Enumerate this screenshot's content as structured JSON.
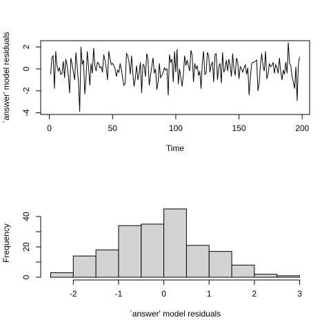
{
  "chart_data": [
    {
      "type": "line",
      "xlabel": "Time",
      "ylabel": "`answer' model residuals",
      "color": "#000000",
      "x": [
        1,
        2,
        3,
        4,
        5,
        6,
        7,
        8,
        9,
        10,
        11,
        12,
        13,
        14,
        15,
        16,
        17,
        18,
        19,
        20,
        21,
        22,
        23,
        24,
        25,
        26,
        27,
        28,
        29,
        30,
        31,
        32,
        33,
        34,
        35,
        36,
        37,
        38,
        39,
        40,
        41,
        42,
        43,
        44,
        45,
        46,
        47,
        48,
        49,
        50,
        51,
        52,
        53,
        54,
        55,
        56,
        57,
        58,
        59,
        60,
        61,
        62,
        63,
        64,
        65,
        66,
        67,
        68,
        69,
        70,
        71,
        72,
        73,
        74,
        75,
        76,
        77,
        78,
        79,
        80,
        81,
        82,
        83,
        84,
        85,
        86,
        87,
        88,
        89,
        90,
        91,
        92,
        93,
        94,
        95,
        96,
        97,
        98,
        99,
        100,
        101,
        102,
        103,
        104,
        105,
        106,
        107,
        108,
        109,
        110,
        111,
        112,
        113,
        114,
        115,
        116,
        117,
        118,
        119,
        120,
        121,
        122,
        123,
        124,
        125,
        126,
        127,
        128,
        129,
        130,
        131,
        132,
        133,
        134,
        135,
        136,
        137,
        138,
        139,
        140,
        141,
        142,
        143,
        144,
        145,
        146,
        147,
        148,
        149,
        150,
        151,
        152,
        153,
        154,
        155,
        156,
        157,
        158,
        159,
        160,
        161,
        162,
        163,
        164,
        165,
        166,
        167,
        168,
        169,
        170,
        171,
        172,
        173,
        174,
        175,
        176,
        177,
        178,
        179,
        180,
        181,
        182,
        183,
        184,
        185,
        186,
        187,
        188,
        189,
        190,
        191,
        192,
        193,
        194,
        195,
        196,
        197,
        198
      ],
      "values": [
        -0.5,
        1.0,
        1.2,
        -1.8,
        1.6,
        0.3,
        -0.2,
        0.1,
        -0.5,
        -0.4,
        0.7,
        -0.8,
        0.9,
        0.3,
        -0.6,
        -2.2,
        1.0,
        0.4,
        -0.3,
        -1.0,
        1.5,
        0.2,
        -1.2,
        -3.9,
        2.0,
        0.4,
        0.8,
        -2.3,
        -0.8,
        1.6,
        0.2,
        -1.5,
        0.5,
        -0.4,
        1.9,
        0.3,
        -0.2,
        0.6,
        0.5,
        0.1,
        0.2,
        -0.3,
        1.3,
        0.8,
        0.1,
        -1.0,
        1.6,
        0.9,
        0.4,
        0.5,
        0.3,
        0.0,
        -0.7,
        -0.1,
        -0.3,
        0.5,
        -0.1,
        -0.9,
        -1.5,
        -1.3,
        1.4,
        1.2,
        0.6,
        -0.5,
        1.2,
        -0.4,
        -1.6,
        -0.8,
        0.3,
        -1.0,
        -0.4,
        0.6,
        -2.2,
        0.4,
        0.3,
        -0.7,
        1.4,
        0.9,
        -1.5,
        -0.6,
        0.2,
        1.0,
        -0.4,
        0.0,
        -1.9,
        -1.2,
        0.5,
        -0.8,
        -0.6,
        -0.3,
        0.1,
        -0.1,
        0.0,
        -2.4,
        1.3,
        0.6,
        0.9,
        -1.2,
        1.6,
        -0.3,
        1.8,
        -1.4,
        0.0,
        -0.8,
        -1.6,
        -0.5,
        1.2,
        0.3,
        0.8,
        0.3,
        -0.2,
        1.7,
        1.2,
        -1.2,
        0.5,
        0.0,
        0.3,
        -0.6,
        -0.2,
        -1.8,
        0.6,
        1.6,
        -0.5,
        -0.4,
        1.5,
        1.2,
        -0.3,
        0.4,
        0.6,
        -1.2,
        1.3,
        1.4,
        -1.0,
        0.2,
        0.5,
        -1.3,
        1.5,
        -0.3,
        0.0,
        0.8,
        -0.2,
        0.9,
        0.3,
        -0.7,
        1.4,
        0.0,
        -0.6,
        1.0,
        0.6,
        -0.9,
        0.2,
        0.0,
        -0.3,
        0.1,
        0.4,
        -0.5,
        0.1,
        -2.4,
        -0.8,
        0.5,
        0.6,
        0.6,
        0.7,
        0.8,
        -2.0,
        -1.3,
        0.4,
        1.4,
        0.3,
        -0.2,
        1.6,
        -0.9,
        -0.5,
        0.5,
        0.2,
        0.3,
        0.6,
        -0.4,
        0.4,
        0.1,
        -0.4,
        1.0,
        -0.2,
        -1.0,
        -0.1,
        -0.5,
        0.6,
        -0.4,
        2.4,
        0.5,
        0.3,
        -0.7,
        -1.2,
        -1.8,
        0.2,
        -2.9,
        0.5,
        1.1
      ],
      "xlim": [
        -6.88,
        205.88
      ],
      "ylim": [
        -4.15,
        2.57
      ],
      "xticks": [
        0,
        50,
        100,
        150,
        200
      ],
      "yticks": [
        -4,
        -2,
        0,
        2
      ]
    },
    {
      "type": "histogram",
      "xlabel": "`answer' model residuals",
      "ylabel": "Frequency",
      "color": "#d3d3d3",
      "bins": [
        -2.5,
        -2,
        -1.5,
        -1,
        -0.5,
        0,
        0.5,
        1,
        1.5,
        2,
        2.5,
        3
      ],
      "values": [
        3,
        14,
        18,
        34,
        35,
        45,
        21,
        17,
        8,
        2,
        1
      ],
      "xlim": [
        -2.72,
        3.22
      ],
      "ylim": [
        -1.8,
        46.8
      ],
      "xticks": [
        -2,
        -1,
        0,
        1,
        2,
        3
      ],
      "yticks": [
        0,
        10,
        20,
        30,
        40
      ]
    }
  ]
}
